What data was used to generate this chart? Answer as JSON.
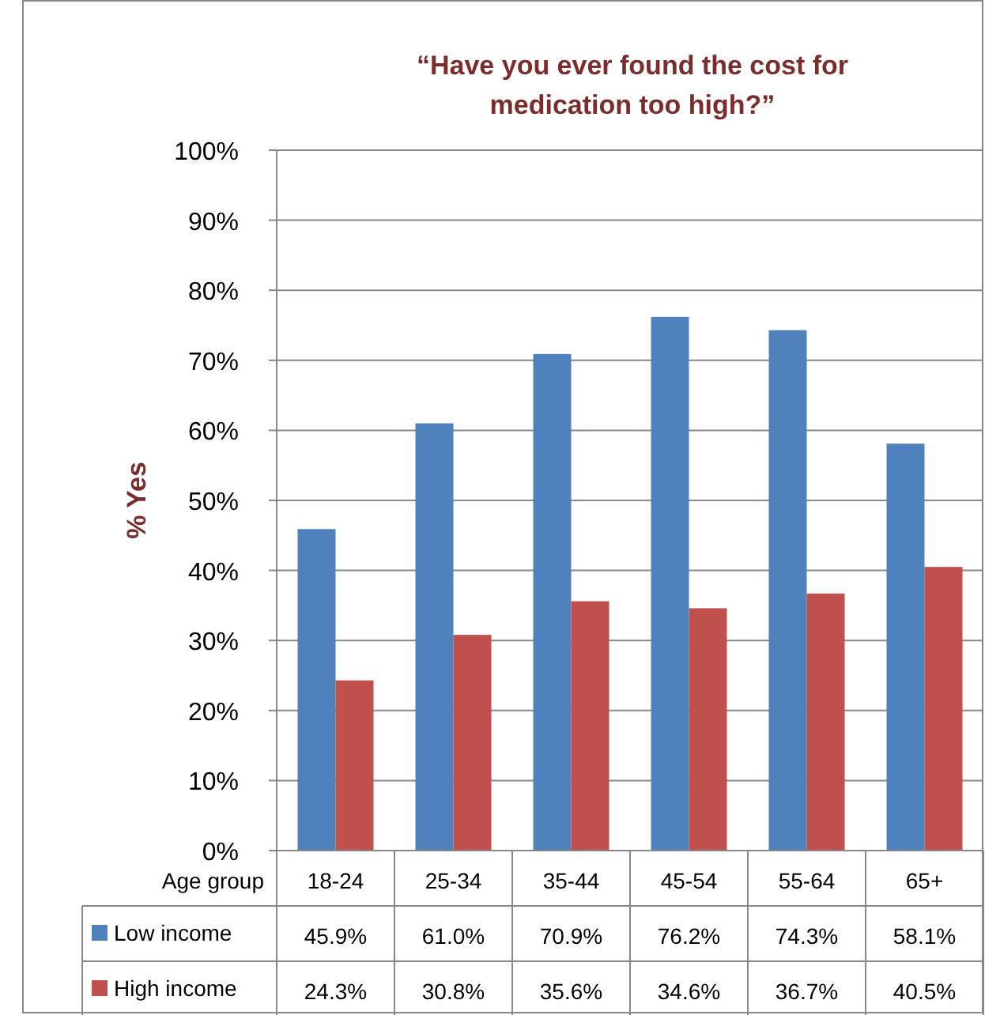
{
  "chart_data": {
    "type": "bar",
    "title": "“Have you ever found the cost for medication too high?”",
    "xlabel": "Age group",
    "ylabel": "% Yes",
    "categories": [
      "18-24",
      "25-34",
      "35-44",
      "45-54",
      "55-64",
      "65+"
    ],
    "series": [
      {
        "name": "Low income",
        "color": "#4f81bd",
        "values": [
          45.9,
          61.0,
          70.9,
          76.2,
          74.3,
          58.1
        ],
        "value_labels": [
          "45.9%",
          "61.0%",
          "70.9%",
          "76.2%",
          "74.3%",
          "58.1%"
        ]
      },
      {
        "name": "High income",
        "color": "#c0504d",
        "values": [
          24.3,
          30.8,
          35.6,
          34.6,
          36.7,
          40.5
        ],
        "value_labels": [
          "24.3%",
          "30.8%",
          "35.6%",
          "34.6%",
          "36.7%",
          "40.5%"
        ]
      }
    ],
    "ylim": [
      0,
      100
    ],
    "yticks": [
      {
        "value": 0,
        "label": "0%"
      },
      {
        "value": 10,
        "label": "10%"
      },
      {
        "value": 20,
        "label": "20%"
      },
      {
        "value": 30,
        "label": "30%"
      },
      {
        "value": 40,
        "label": "40%"
      },
      {
        "value": 50,
        "label": "50%"
      },
      {
        "value": 60,
        "label": "60%"
      },
      {
        "value": 70,
        "label": "70%"
      },
      {
        "value": 80,
        "label": "80%"
      },
      {
        "value": 90,
        "label": "90%"
      },
      {
        "value": 100,
        "label": "100%"
      }
    ],
    "grid": "y",
    "legend": "bottom"
  }
}
